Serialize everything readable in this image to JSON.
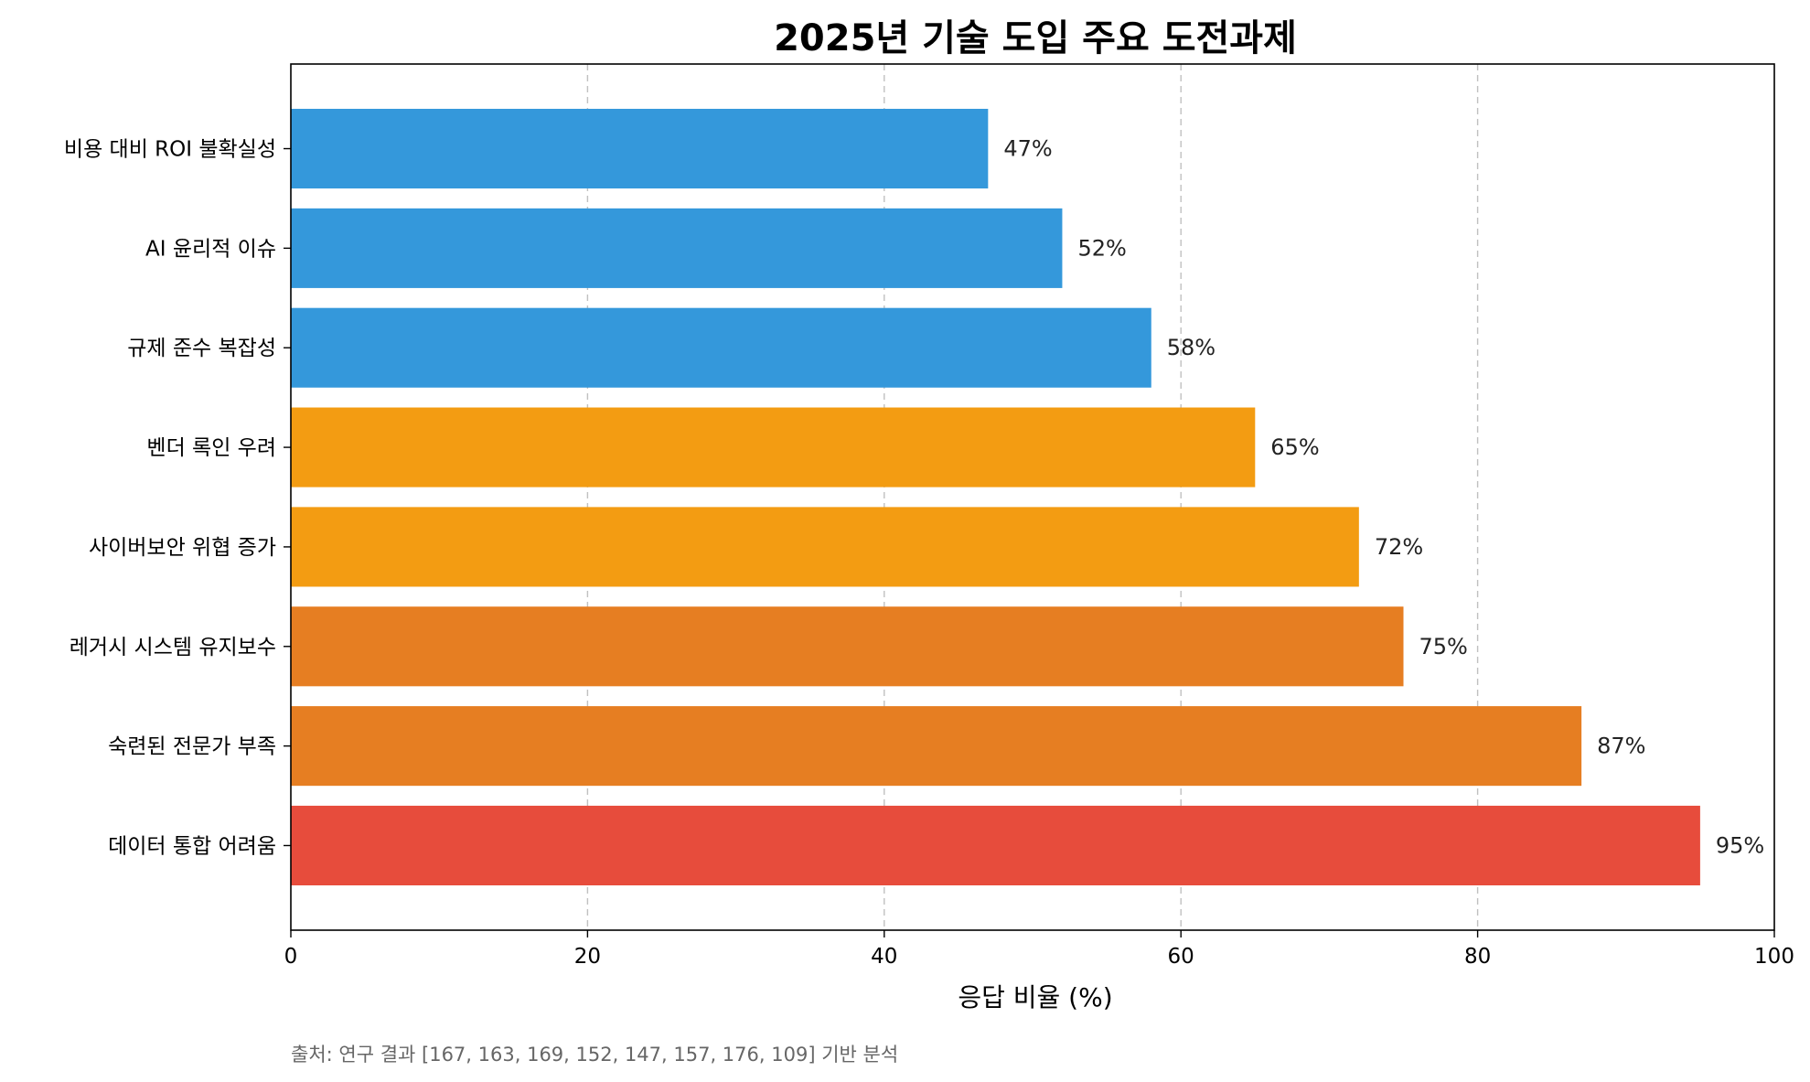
{
  "chart_data": {
    "type": "bar",
    "orientation": "horizontal",
    "title": "2025년 기술 도입 주요 도전과제",
    "xlabel": "응답 비율 (%)",
    "ylabel": "",
    "xlim": [
      0,
      100
    ],
    "xticks": [
      0,
      20,
      40,
      60,
      80,
      100
    ],
    "grid": "vertical-dashed",
    "categories": [
      "비용 대비 ROI 불확실성",
      "AI 윤리적 이슈",
      "규제 준수 복잡성",
      "벤더 록인 우려",
      "사이버보안 위협 증가",
      "레거시 시스템 유지보수",
      "숙련된 전문가 부족",
      "데이터 통합 어려움"
    ],
    "values": [
      47,
      52,
      58,
      65,
      72,
      75,
      87,
      95
    ],
    "value_labels": [
      "47%",
      "52%",
      "58%",
      "65%",
      "72%",
      "75%",
      "87%",
      "95%"
    ],
    "colors": [
      "#3498db",
      "#3498db",
      "#3498db",
      "#f39c12",
      "#f39c12",
      "#e67e22",
      "#e67e22",
      "#e74c3c"
    ],
    "source_note": "출처: 연구 결과 [167, 163, 169, 152, 147, 157, 176, 109] 기반 분석"
  }
}
